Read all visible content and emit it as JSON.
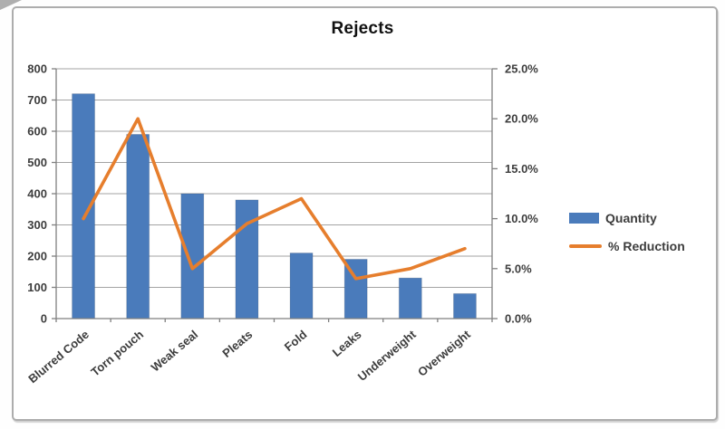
{
  "chart_data": {
    "type": "bar",
    "subtype": "combo-bar-line",
    "title": "Rejects",
    "categories": [
      "Blurred Code",
      "Torn pouch",
      "Weak seal",
      "Pleats",
      "Fold",
      "Leaks",
      "Underweight",
      "Overweight"
    ],
    "series": [
      {
        "name": "Quantity",
        "chart_type": "bar",
        "axis": "left",
        "color": "#4A7BBB",
        "values": [
          720,
          590,
          400,
          380,
          210,
          190,
          130,
          80
        ]
      },
      {
        "name": "% Reduction",
        "chart_type": "line",
        "axis": "right",
        "unit": "%",
        "color": "#E67E2D",
        "values": [
          10,
          20,
          5,
          9.5,
          12,
          4,
          5,
          7
        ]
      }
    ],
    "left_axis": {
      "min": 0,
      "max": 800,
      "step": 100,
      "tick_labels": [
        "0",
        "100",
        "200",
        "300",
        "400",
        "500",
        "600",
        "700",
        "800"
      ]
    },
    "right_axis": {
      "min": 0,
      "max": 25,
      "step": 5,
      "tick_labels": [
        "0.0%",
        "5.0%",
        "10.0%",
        "15.0%",
        "20.0%",
        "25.0%"
      ]
    },
    "grid": true,
    "legend_position": "right",
    "grid_color": "#a3a3a3",
    "axis_color": "#7f7f7f"
  }
}
